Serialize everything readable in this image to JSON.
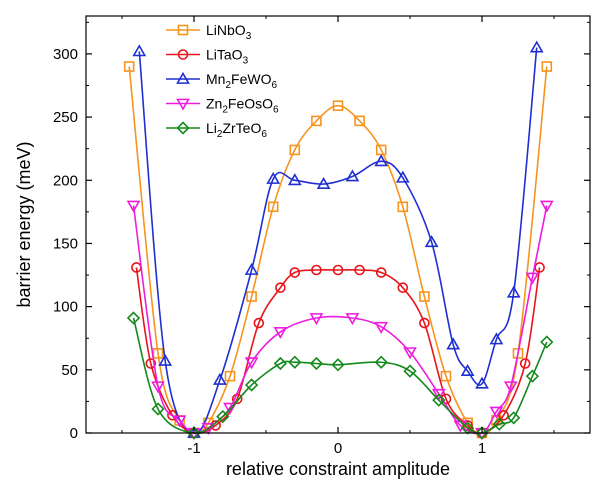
{
  "chart_data": {
    "type": "line",
    "xlabel": "relative constraint amplitude",
    "ylabel": "barrier energy (meV)",
    "xlim": [
      -1.75,
      1.75
    ],
    "ylim": [
      0,
      330
    ],
    "xticks": [
      -1,
      0,
      1
    ],
    "yticks": [
      0,
      50,
      100,
      150,
      200,
      250,
      300
    ],
    "grid": false,
    "legend_position": "top-left",
    "series": [
      {
        "name": "LiNbO",
        "name_sub": "3",
        "color": "#f7941d",
        "marker": "square",
        "x": [
          -1.45,
          -1.25,
          -1.1,
          -1.0,
          -0.9,
          -0.75,
          -0.6,
          -0.45,
          -0.3,
          -0.15,
          0.0,
          0.15,
          0.3,
          0.45,
          0.6,
          0.75,
          0.9,
          1.0,
          1.1,
          1.25,
          1.45
        ],
        "y": [
          290,
          63,
          10,
          0,
          8,
          45,
          108,
          179,
          224,
          247,
          259,
          247,
          224,
          179,
          108,
          45,
          8,
          0,
          10,
          63,
          290
        ]
      },
      {
        "name": "LiTaO",
        "name_sub": "3",
        "color": "#e8141b",
        "marker": "circle",
        "x": [
          -1.4,
          -1.3,
          -1.15,
          -1.0,
          -0.85,
          -0.7,
          -0.55,
          -0.4,
          -0.3,
          -0.15,
          0.0,
          0.15,
          0.3,
          0.45,
          0.6,
          0.75,
          0.9,
          1.0,
          1.15,
          1.3,
          1.4
        ],
        "y": [
          131,
          55,
          14,
          0,
          6,
          27,
          87,
          115,
          127,
          129,
          129,
          129,
          127,
          115,
          87,
          27,
          6,
          0,
          14,
          55,
          131
        ]
      },
      {
        "name": "Mn",
        "name_sub": "2",
        "name_rest": "FeWO",
        "name_sub2": "6",
        "color": "#1f2fd1",
        "marker": "triangle-up",
        "x": [
          -1.38,
          -1.2,
          -1.0,
          -0.82,
          -0.6,
          -0.45,
          -0.3,
          -0.1,
          0.1,
          0.3,
          0.45,
          0.65,
          0.8,
          0.9,
          1.0,
          1.1,
          1.22,
          1.38
        ],
        "y": [
          302,
          57,
          0,
          42,
          129,
          201,
          200,
          197,
          203,
          215,
          202,
          151,
          70,
          49,
          39,
          74,
          111,
          305
        ]
      },
      {
        "name": "Zn",
        "name_sub": "2",
        "name_rest": "FeOsO",
        "name_sub2": "6",
        "color": "#ee1cde",
        "marker": "triangle-down",
        "x": [
          -1.42,
          -1.25,
          -1.1,
          -1.0,
          -0.9,
          -0.75,
          -0.6,
          -0.4,
          -0.15,
          0.1,
          0.3,
          0.5,
          0.7,
          0.85,
          1.0,
          1.1,
          1.2,
          1.35,
          1.45
        ],
        "y": [
          180,
          37,
          10,
          0,
          4,
          20,
          56,
          80,
          91,
          91,
          84,
          64,
          31,
          6,
          0,
          17,
          37,
          123,
          180
        ]
      },
      {
        "name": "Li",
        "name_sub": "2",
        "name_rest": "ZrTeO",
        "name_sub2": "6",
        "color": "#158a1c",
        "marker": "diamond",
        "x": [
          -1.42,
          -1.25,
          -1.0,
          -0.8,
          -0.6,
          -0.4,
          -0.3,
          -0.15,
          0.0,
          0.3,
          0.5,
          0.7,
          0.9,
          1.0,
          1.12,
          1.22,
          1.35,
          1.45
        ],
        "y": [
          91,
          19,
          0,
          13,
          38,
          55,
          56,
          55,
          54,
          56,
          49,
          26,
          4,
          0,
          7,
          12,
          45,
          72
        ]
      }
    ]
  }
}
